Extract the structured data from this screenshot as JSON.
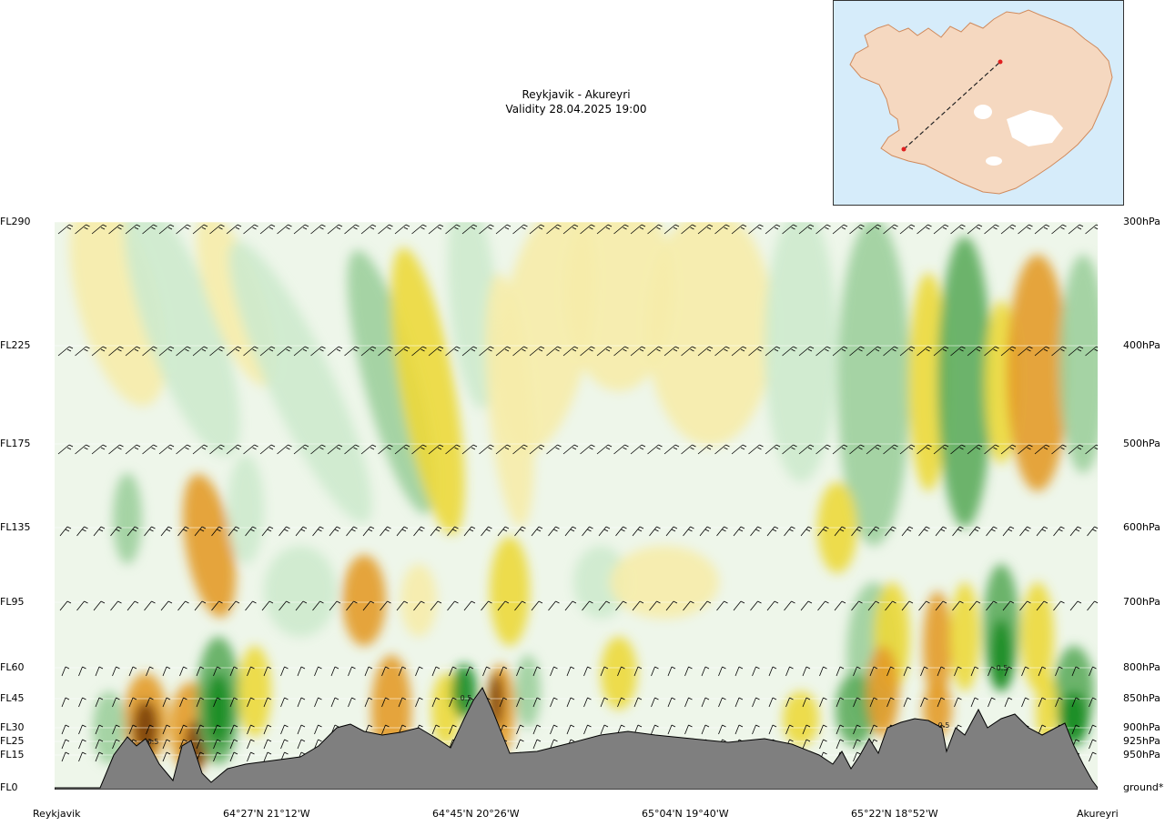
{
  "header": {
    "route": "Reykjavik - Akureyri",
    "validity": "Validity 28.04.2025 19:00"
  },
  "chart_data": {
    "type": "heatmap",
    "title": "Reykjavik - Akureyri",
    "subtitle": "Validity 28.04.2025 19:00",
    "left_axis": [
      "FL290",
      "FL225",
      "FL175",
      "FL135",
      "FL95",
      "FL60",
      "FL45",
      "FL30",
      "FL25",
      "FL15",
      "FL0"
    ],
    "right_axis": [
      "300hPa",
      "400hPa",
      "500hPa",
      "600hPa",
      "700hPa",
      "800hPa",
      "850hPa",
      "900hPa",
      "925hPa",
      "950hPa",
      "ground*"
    ],
    "x_labels": [
      "Reykjavik",
      "64°27'N 21°12'W",
      "64°45'N 20°26'W",
      "65°04'N 19°40'W",
      "65°22'N 18°52'W",
      "Akureyri"
    ],
    "annotations": [
      "0.5",
      "0.5",
      "0.5",
      "0.5"
    ],
    "colors": {
      "ground": "#7f7f7f",
      "sink_light": "#f6ecaa",
      "sink_mid": "#ecd93a",
      "sink_strong": "#e39b27",
      "sink_max": "#7a3f10",
      "rise_light": "#cdeacd",
      "rise_mid": "#9ccf9c",
      "rise_strong": "#5cac5c",
      "rise_max": "#178c22"
    }
  },
  "map": {
    "route_colors": {
      "line": "#222222",
      "endpoint": "#e02020",
      "land": "#f6d9c2",
      "ice": "#ffffff"
    }
  }
}
